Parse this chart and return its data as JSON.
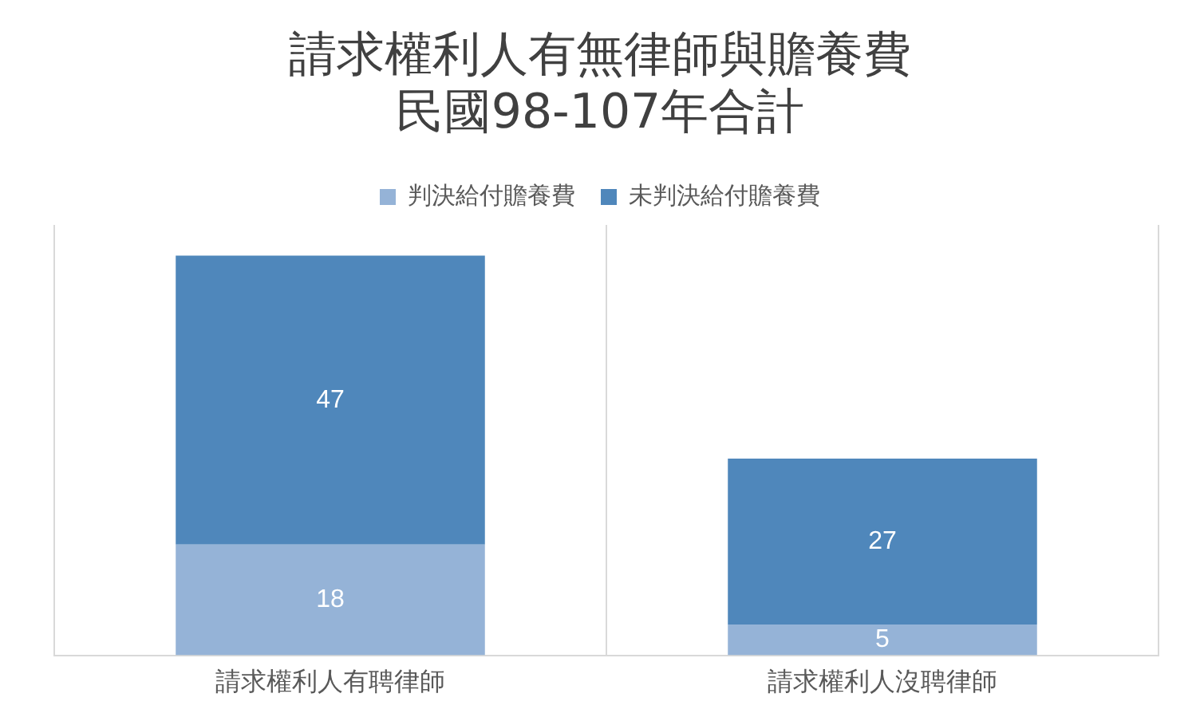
{
  "chart_data": {
    "type": "bar",
    "title": "請求權利人有無律師與贍養費",
    "subtitle": "民國98-107年合計",
    "categories": [
      "請求權利人有聘律師",
      "請求權利人沒聘律師"
    ],
    "series": [
      {
        "name": "判決給付贍養費",
        "color": "#95b3d7",
        "values": [
          18,
          5
        ]
      },
      {
        "name": "未判決給付贍養費",
        "color": "#4f87bb",
        "values": [
          47,
          27
        ]
      }
    ],
    "stacked": true,
    "ylim": [
      0,
      70
    ],
    "tick_labels": "x",
    "grid": "x",
    "legend": "top",
    "data_labels": true
  }
}
